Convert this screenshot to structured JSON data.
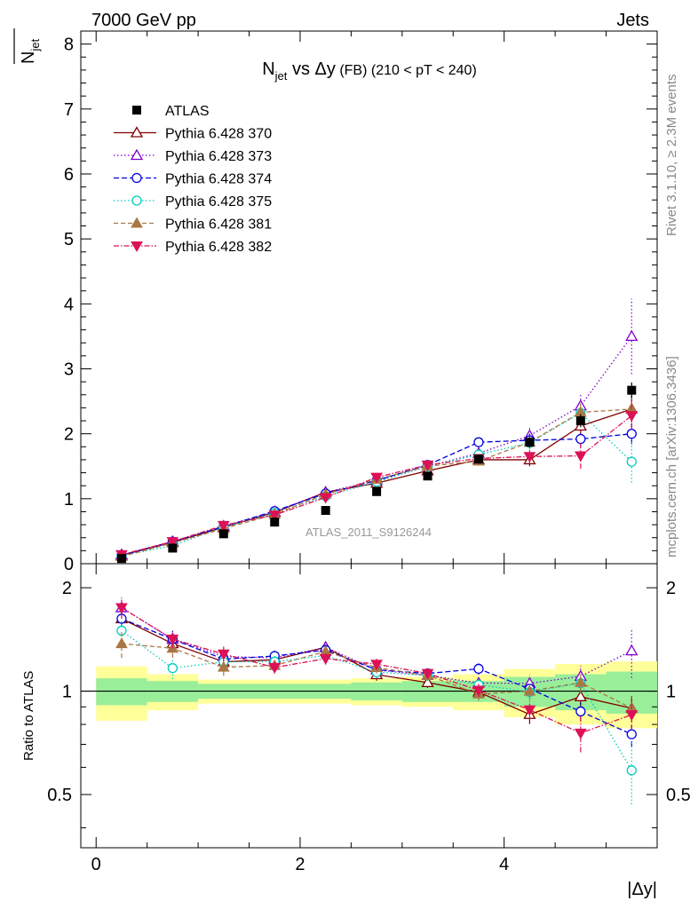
{
  "header": {
    "energy_label": "7000 GeV pp",
    "category_label": "Jets",
    "side_label_top": "Rivet 3.1.10, ≥ 2.3M events",
    "side_label_bottom": "mcplots.cern.ch [arXiv:1306.3436]",
    "analysis_id": "ATLAS_2011_S9126244"
  },
  "main_panel": {
    "title_prefix": "N",
    "title_sub": "jet",
    "title_mid": " vs Δy",
    "title_small": " (FB) ",
    "title_cut": "(210 < pT < 240)",
    "y_axis_label_main": "N",
    "y_axis_label_sub": "jet"
  },
  "ratio_panel": {
    "y_axis_label": "Ratio to ATLAS"
  },
  "x_axis_label": "|Δy|",
  "chart_data": {
    "type": "line",
    "x": [
      0.25,
      0.75,
      1.25,
      1.75,
      2.25,
      2.75,
      3.25,
      3.75,
      4.25,
      4.75,
      5.25
    ],
    "xlim": [
      -0.15,
      5.5
    ],
    "ylim": [
      0,
      8.2
    ],
    "ratio_ylim": [
      0.35,
      2.35
    ],
    "x_ticks": [
      0,
      2,
      4
    ],
    "y_ticks": [
      0,
      1,
      2,
      3,
      4,
      5,
      6,
      7,
      8
    ],
    "ratio_ticks": [
      0.5,
      1,
      2
    ],
    "legend_position": "top-left",
    "reference": {
      "name": "ATLAS",
      "values": [
        0.08,
        0.24,
        0.46,
        0.64,
        0.82,
        1.11,
        1.35,
        1.61,
        1.87,
        2.2,
        2.67
      ],
      "yerr": [
        0.01,
        0.02,
        0.02,
        0.03,
        0.03,
        0.04,
        0.05,
        0.06,
        0.08,
        0.1,
        0.12
      ],
      "ratio_band_inner": [
        0.09,
        0.07,
        0.05,
        0.05,
        0.05,
        0.06,
        0.07,
        0.07,
        0.1,
        0.12,
        0.14
      ],
      "ratio_band_outer": [
        0.18,
        0.12,
        0.08,
        0.08,
        0.08,
        0.09,
        0.1,
        0.12,
        0.16,
        0.2,
        0.22
      ],
      "color": "#000000"
    },
    "series": [
      {
        "name": "Pythia 6.428 370",
        "color": "#800000",
        "marker": "triangle-open",
        "dash": "",
        "values": [
          0.13,
          0.33,
          0.56,
          0.79,
          1.1,
          1.24,
          1.43,
          1.6,
          1.6,
          2.12,
          2.38
        ],
        "yerr": [
          0.01,
          0.02,
          0.03,
          0.03,
          0.04,
          0.05,
          0.05,
          0.07,
          0.1,
          0.14,
          0.2
        ]
      },
      {
        "name": "Pythia 6.428 373",
        "color": "#8000cc",
        "marker": "triangle-open",
        "dash": "1.5,2.5",
        "values": [
          0.14,
          0.34,
          0.58,
          0.8,
          1.1,
          1.28,
          1.5,
          1.7,
          1.97,
          2.43,
          3.5
        ],
        "yerr": [
          0.01,
          0.02,
          0.03,
          0.03,
          0.04,
          0.05,
          0.05,
          0.08,
          0.12,
          0.18,
          0.58
        ]
      },
      {
        "name": "Pythia 6.428 374",
        "color": "#0000dd",
        "marker": "circle-open",
        "dash": "6,3",
        "values": [
          0.13,
          0.34,
          0.57,
          0.81,
          1.08,
          1.28,
          1.52,
          1.87,
          1.9,
          1.92,
          2.0
        ],
        "yerr": [
          0.01,
          0.02,
          0.03,
          0.03,
          0.04,
          0.05,
          0.05,
          0.07,
          0.1,
          0.12,
          0.16
        ]
      },
      {
        "name": "Pythia 6.428 375",
        "color": "#00ccbb",
        "marker": "circle-open",
        "dash": "1.5,2.5",
        "values": [
          0.12,
          0.28,
          0.56,
          0.78,
          1.04,
          1.26,
          1.5,
          1.68,
          1.86,
          2.32,
          1.57
        ],
        "yerr": [
          0.01,
          0.02,
          0.03,
          0.03,
          0.04,
          0.05,
          0.05,
          0.07,
          0.1,
          0.14,
          0.32
        ]
      },
      {
        "name": "Pythia 6.428 381",
        "color": "#aa7744",
        "marker": "triangle-filled",
        "dash": "5,3",
        "values": [
          0.11,
          0.32,
          0.54,
          0.76,
          1.07,
          1.3,
          1.5,
          1.58,
          1.87,
          2.33,
          2.38
        ],
        "yerr": [
          0.01,
          0.02,
          0.03,
          0.03,
          0.04,
          0.05,
          0.05,
          0.07,
          0.1,
          0.14,
          0.18
        ]
      },
      {
        "name": "Pythia 6.428 382",
        "color": "#dd1155",
        "marker": "triangle-down-filled",
        "dash": "6,2,1.5,2",
        "values": [
          0.14,
          0.34,
          0.59,
          0.75,
          1.02,
          1.33,
          1.52,
          1.62,
          1.65,
          1.66,
          2.28
        ],
        "yerr": [
          0.01,
          0.02,
          0.03,
          0.03,
          0.04,
          0.05,
          0.05,
          0.07,
          0.1,
          0.2,
          0.22
        ]
      }
    ]
  }
}
